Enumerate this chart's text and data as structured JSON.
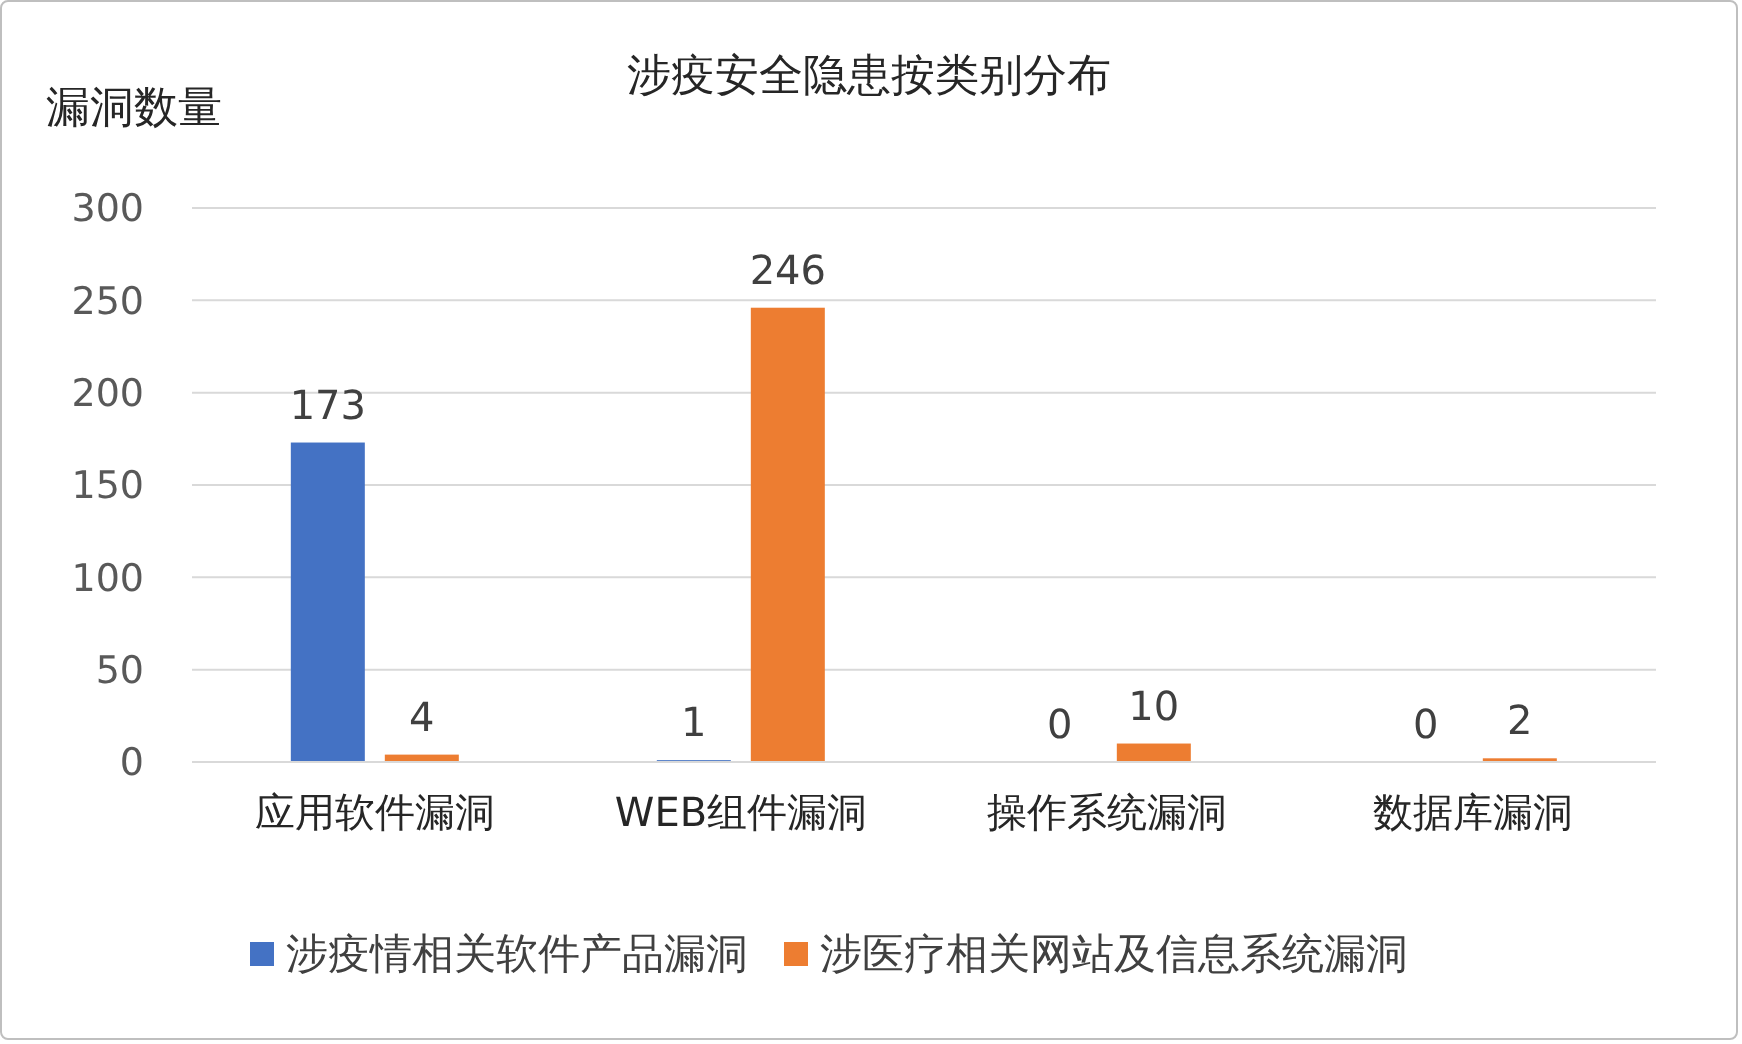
{
  "chart_data": {
    "type": "bar",
    "title": "涉疫安全隐患按类别分布",
    "ylabel": "漏洞数量",
    "categories": [
      "应用软件漏洞",
      "WEB组件漏洞",
      "操作系统漏洞",
      "数据库漏洞"
    ],
    "series": [
      {
        "name": "涉疫情相关软件产品漏洞",
        "color": "#4472c4",
        "values": [
          173,
          1,
          0,
          0
        ]
      },
      {
        "name": "涉医疗相关网站及信息系统漏洞",
        "color": "#ed7d31",
        "values": [
          4,
          246,
          10,
          2
        ]
      }
    ],
    "ylim": [
      0,
      300
    ],
    "yticks": [
      0,
      50,
      100,
      150,
      200,
      250,
      300
    ],
    "grid": "y",
    "legend": "bottom",
    "data_labels": true
  }
}
